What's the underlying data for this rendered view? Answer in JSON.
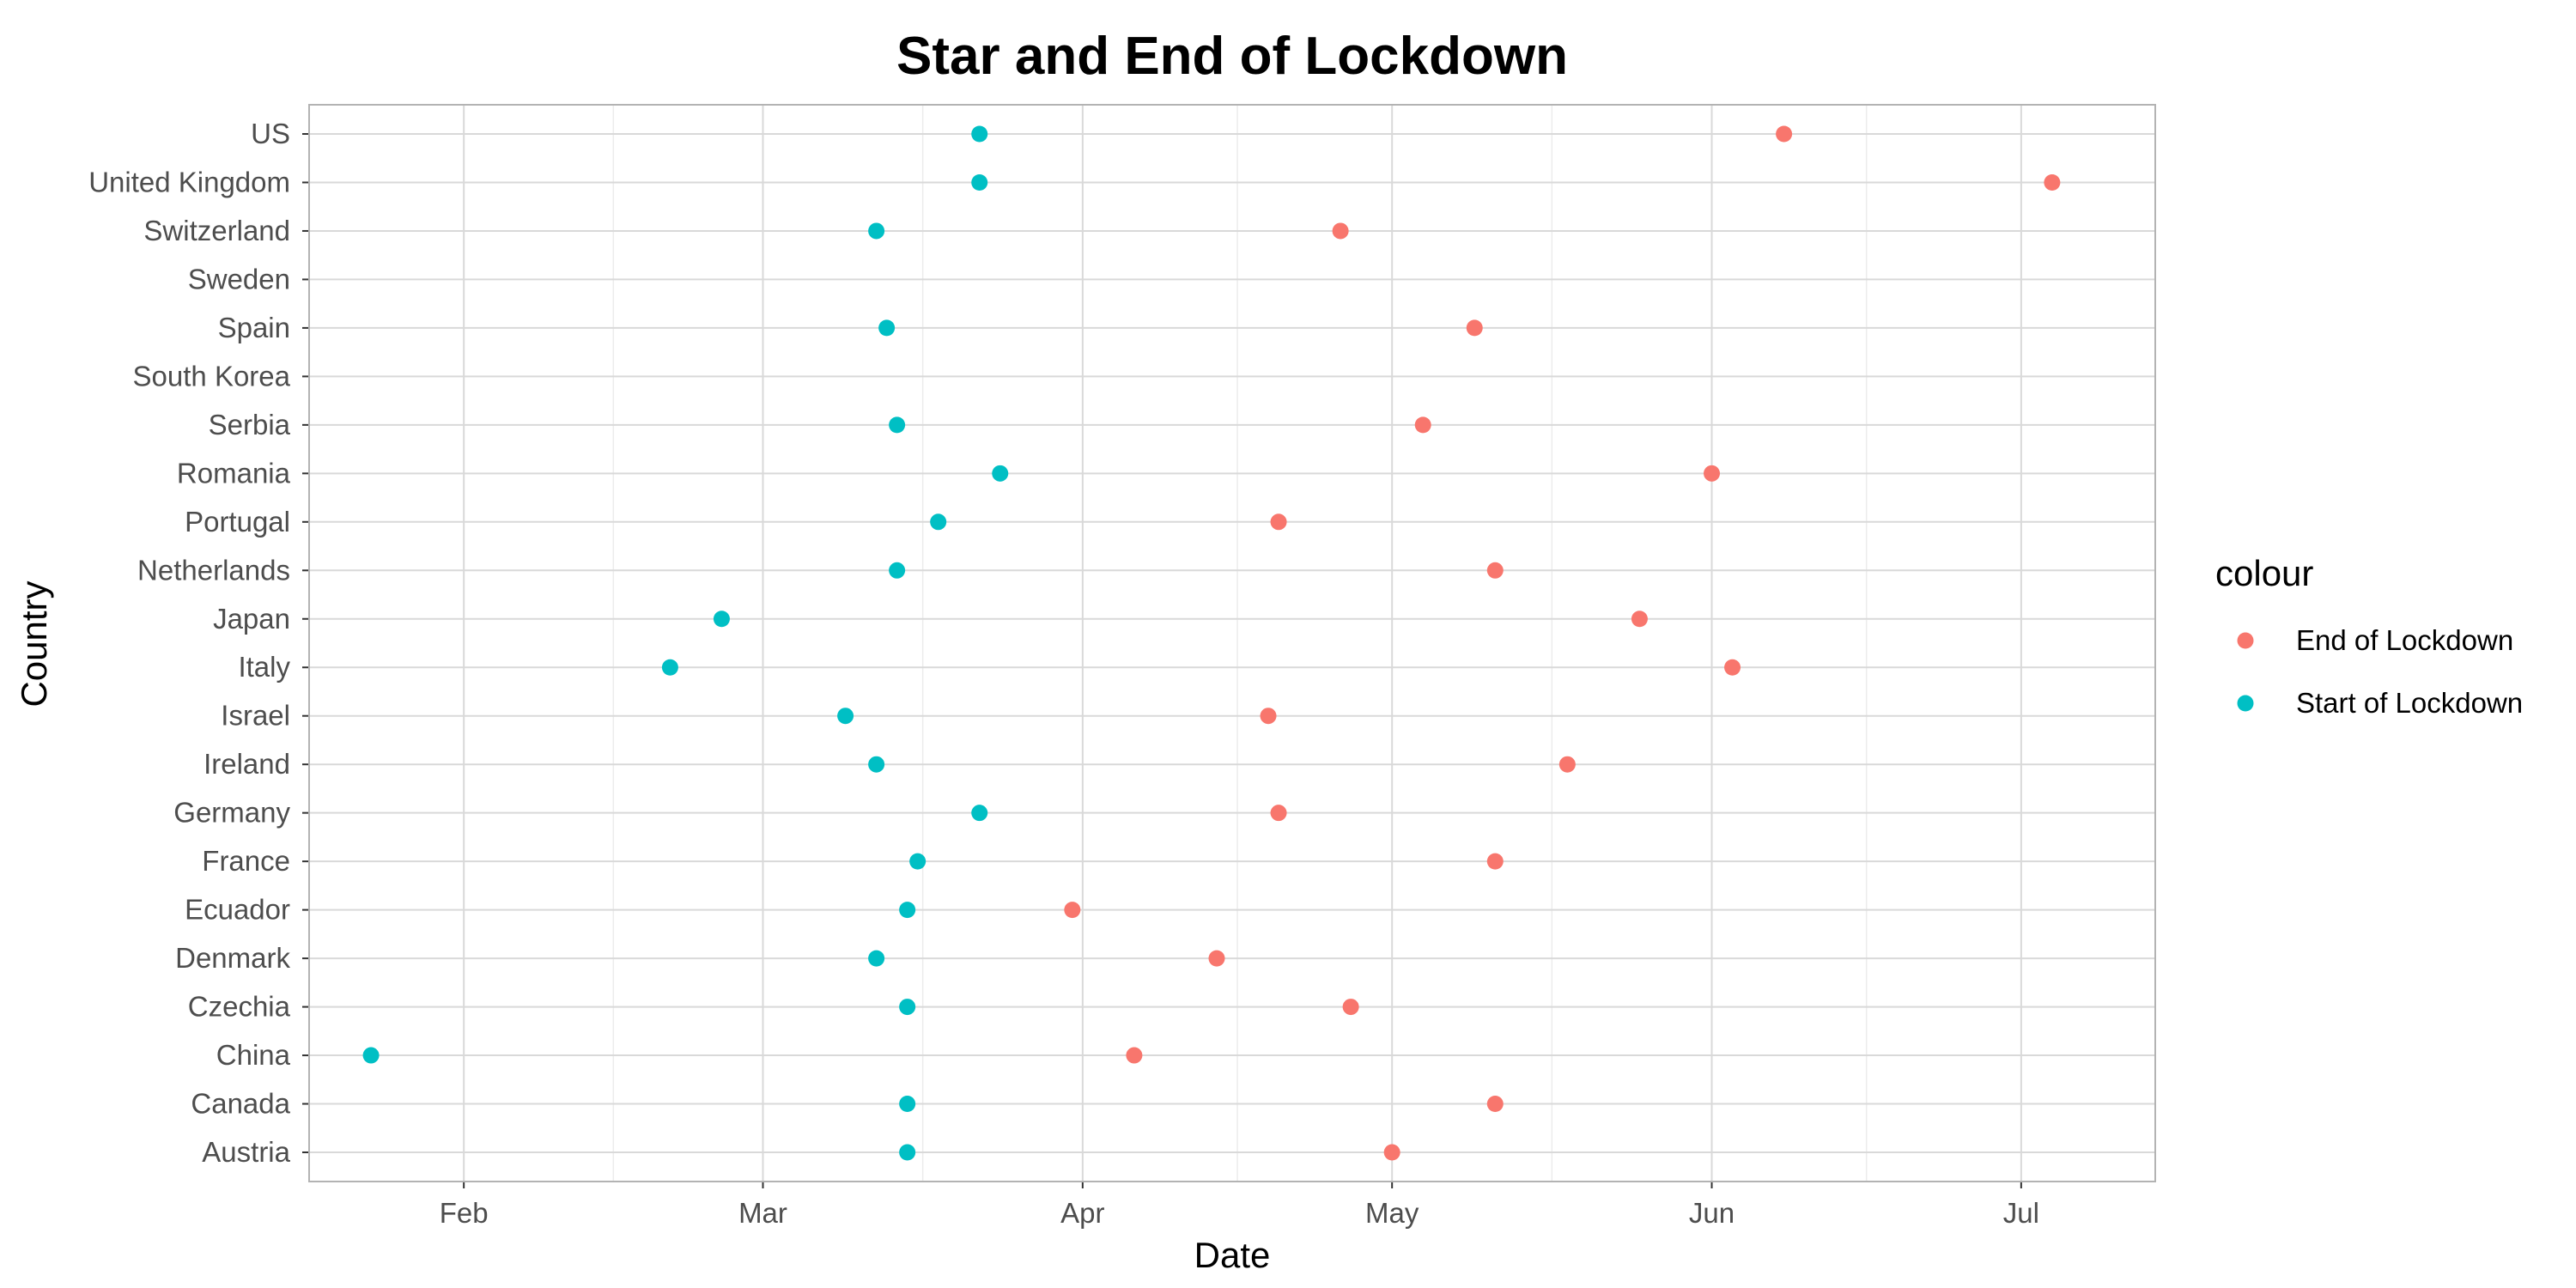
{
  "chart_data": {
    "type": "scatter",
    "title": "Star and End of Lockdown",
    "xlabel": "Date",
    "ylabel": "Country",
    "x_axis": {
      "type": "date",
      "range": [
        "2020-01-17",
        "2020-07-14"
      ],
      "ticks": [
        {
          "date": "2020-02-01",
          "label": "Feb"
        },
        {
          "date": "2020-03-01",
          "label": "Mar"
        },
        {
          "date": "2020-04-01",
          "label": "Apr"
        },
        {
          "date": "2020-05-01",
          "label": "May"
        },
        {
          "date": "2020-06-01",
          "label": "Jun"
        },
        {
          "date": "2020-07-01",
          "label": "Jul"
        }
      ]
    },
    "categories": [
      "Austria",
      "Canada",
      "China",
      "Czechia",
      "Denmark",
      "Ecuador",
      "France",
      "Germany",
      "Ireland",
      "Israel",
      "Italy",
      "Japan",
      "Netherlands",
      "Portugal",
      "Romania",
      "Serbia",
      "South Korea",
      "Spain",
      "Sweden",
      "Switzerland",
      "United Kingdom",
      "US"
    ],
    "grid": true,
    "legend": {
      "title": "colour",
      "position": "right"
    },
    "series": [
      {
        "name": "End of Lockdown",
        "color": "#F8766D",
        "points": [
          {
            "category": "US",
            "x": "2020-06-08"
          },
          {
            "category": "United Kingdom",
            "x": "2020-07-04"
          },
          {
            "category": "Switzerland",
            "x": "2020-04-26"
          },
          {
            "category": "Spain",
            "x": "2020-05-09"
          },
          {
            "category": "Serbia",
            "x": "2020-05-04"
          },
          {
            "category": "Romania",
            "x": "2020-06-01"
          },
          {
            "category": "Portugal",
            "x": "2020-04-20"
          },
          {
            "category": "Netherlands",
            "x": "2020-05-11"
          },
          {
            "category": "Japan",
            "x": "2020-05-25"
          },
          {
            "category": "Italy",
            "x": "2020-06-03"
          },
          {
            "category": "Israel",
            "x": "2020-04-19"
          },
          {
            "category": "Ireland",
            "x": "2020-05-18"
          },
          {
            "category": "Germany",
            "x": "2020-04-20"
          },
          {
            "category": "France",
            "x": "2020-05-11"
          },
          {
            "category": "Ecuador",
            "x": "2020-03-31"
          },
          {
            "category": "Denmark",
            "x": "2020-04-14"
          },
          {
            "category": "Czechia",
            "x": "2020-04-27"
          },
          {
            "category": "China",
            "x": "2020-04-06"
          },
          {
            "category": "Canada",
            "x": "2020-05-11"
          },
          {
            "category": "Austria",
            "x": "2020-05-01"
          }
        ]
      },
      {
        "name": "Start of Lockdown",
        "color": "#00BFC4",
        "points": [
          {
            "category": "US",
            "x": "2020-03-22"
          },
          {
            "category": "United Kingdom",
            "x": "2020-03-22"
          },
          {
            "category": "Switzerland",
            "x": "2020-03-12"
          },
          {
            "category": "Spain",
            "x": "2020-03-13"
          },
          {
            "category": "Serbia",
            "x": "2020-03-14"
          },
          {
            "category": "Romania",
            "x": "2020-03-24"
          },
          {
            "category": "Portugal",
            "x": "2020-03-18"
          },
          {
            "category": "Netherlands",
            "x": "2020-03-14"
          },
          {
            "category": "Japan",
            "x": "2020-02-26"
          },
          {
            "category": "Italy",
            "x": "2020-02-21"
          },
          {
            "category": "Israel",
            "x": "2020-03-09"
          },
          {
            "category": "Ireland",
            "x": "2020-03-12"
          },
          {
            "category": "Germany",
            "x": "2020-03-22"
          },
          {
            "category": "France",
            "x": "2020-03-16"
          },
          {
            "category": "Ecuador",
            "x": "2020-03-15"
          },
          {
            "category": "Denmark",
            "x": "2020-03-12"
          },
          {
            "category": "Czechia",
            "x": "2020-03-15"
          },
          {
            "category": "China",
            "x": "2020-01-23"
          },
          {
            "category": "Canada",
            "x": "2020-03-15"
          },
          {
            "category": "Austria",
            "x": "2020-03-15"
          }
        ]
      }
    ]
  }
}
